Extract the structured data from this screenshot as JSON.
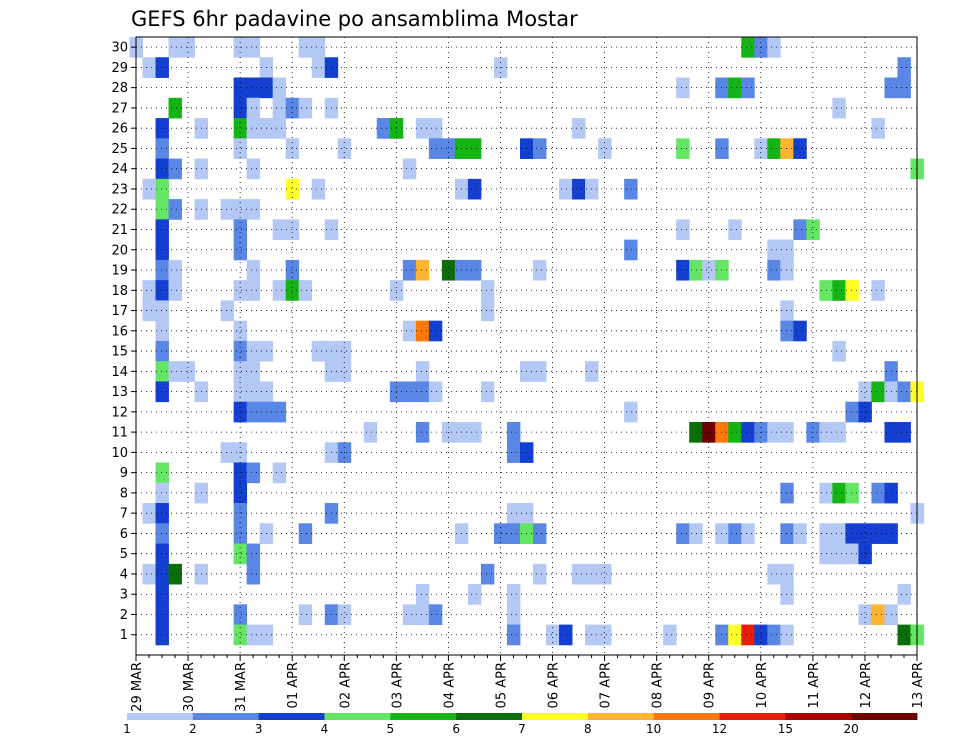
{
  "chart_data": {
    "type": "heatmap",
    "title": "GEFS 6hr padavine po ansamblima Mostar",
    "y_categories": [
      "1",
      "2",
      "3",
      "4",
      "5",
      "6",
      "7",
      "8",
      "9",
      "10",
      "11",
      "12",
      "13",
      "14",
      "15",
      "16",
      "17",
      "18",
      "19",
      "20",
      "21",
      "22",
      "23",
      "24",
      "25",
      "26",
      "27",
      "28",
      "29",
      "30"
    ],
    "x_tick_labels": [
      "29 MAR",
      "30 MAR",
      "31 MAR",
      "01 APR",
      "02 APR",
      "03 APR",
      "04 APR",
      "05 APR",
      "06 APR",
      "07 APR",
      "08 APR",
      "09 APR",
      "10 APR",
      "11 APR",
      "12 APR",
      "13 APR"
    ],
    "steps_per_day": 4,
    "total_steps": 60,
    "grid": true,
    "colorbar": {
      "levels": [
        "1",
        "2",
        "3",
        "4",
        "5",
        "6",
        "7",
        "8",
        "10",
        "12",
        "15",
        "20",
        ""
      ],
      "colors": [
        "#b4c8f5",
        "#5a87e6",
        "#1440d2",
        "#64e664",
        "#14b414",
        "#0a6e0a",
        "#ffff28",
        "#ffb432",
        "#ff780a",
        "#e61e0a",
        "#aa0000",
        "#6e0000"
      ]
    },
    "cells": [
      [
        30,
        0,
        0
      ],
      [
        30,
        3,
        0
      ],
      [
        30,
        4,
        0
      ],
      [
        30,
        8,
        0
      ],
      [
        30,
        9,
        0
      ],
      [
        30,
        13,
        0
      ],
      [
        30,
        14,
        0
      ],
      [
        30,
        47,
        4
      ],
      [
        30,
        48,
        1
      ],
      [
        30,
        49,
        0
      ],
      [
        29,
        1,
        0
      ],
      [
        29,
        2,
        2
      ],
      [
        29,
        10,
        0
      ],
      [
        29,
        14,
        0
      ],
      [
        29,
        15,
        2
      ],
      [
        29,
        28,
        0
      ],
      [
        29,
        59,
        1
      ],
      [
        28,
        8,
        2
      ],
      [
        28,
        9,
        2
      ],
      [
        28,
        10,
        2
      ],
      [
        28,
        11,
        0
      ],
      [
        28,
        42,
        0
      ],
      [
        28,
        45,
        1
      ],
      [
        28,
        46,
        4
      ],
      [
        28,
        47,
        1
      ],
      [
        28,
        58,
        1
      ],
      [
        28,
        59,
        1
      ],
      [
        27,
        3,
        4
      ],
      [
        27,
        8,
        2
      ],
      [
        27,
        9,
        0
      ],
      [
        27,
        11,
        0
      ],
      [
        27,
        12,
        1
      ],
      [
        27,
        13,
        0
      ],
      [
        27,
        15,
        0
      ],
      [
        27,
        54,
        0
      ],
      [
        26,
        2,
        2
      ],
      [
        26,
        5,
        0
      ],
      [
        26,
        8,
        4
      ],
      [
        26,
        9,
        0
      ],
      [
        26,
        10,
        0
      ],
      [
        26,
        11,
        0
      ],
      [
        26,
        19,
        1
      ],
      [
        26,
        20,
        4
      ],
      [
        26,
        22,
        0
      ],
      [
        26,
        23,
        0
      ],
      [
        26,
        34,
        0
      ],
      [
        26,
        57,
        0
      ],
      [
        25,
        2,
        1
      ],
      [
        25,
        8,
        0
      ],
      [
        25,
        12,
        0
      ],
      [
        25,
        16,
        0
      ],
      [
        25,
        23,
        1
      ],
      [
        25,
        24,
        1
      ],
      [
        25,
        25,
        4
      ],
      [
        25,
        26,
        4
      ],
      [
        25,
        30,
        2
      ],
      [
        25,
        31,
        1
      ],
      [
        25,
        36,
        0
      ],
      [
        25,
        42,
        3
      ],
      [
        25,
        45,
        1
      ],
      [
        25,
        48,
        0
      ],
      [
        25,
        49,
        4
      ],
      [
        25,
        50,
        7
      ],
      [
        25,
        51,
        2
      ],
      [
        24,
        2,
        2
      ],
      [
        24,
        3,
        1
      ],
      [
        24,
        5,
        0
      ],
      [
        24,
        9,
        0
      ],
      [
        24,
        21,
        0
      ],
      [
        24,
        60,
        3
      ],
      [
        23,
        1,
        0
      ],
      [
        23,
        2,
        3
      ],
      [
        23,
        12,
        6
      ],
      [
        23,
        14,
        0
      ],
      [
        23,
        25,
        0
      ],
      [
        23,
        26,
        2
      ],
      [
        23,
        33,
        0
      ],
      [
        23,
        34,
        2
      ],
      [
        23,
        35,
        0
      ],
      [
        23,
        38,
        1
      ],
      [
        22,
        2,
        3
      ],
      [
        22,
        3,
        1
      ],
      [
        22,
        5,
        0
      ],
      [
        22,
        7,
        0
      ],
      [
        22,
        8,
        0
      ],
      [
        22,
        9,
        0
      ],
      [
        21,
        2,
        2
      ],
      [
        21,
        8,
        1
      ],
      [
        21,
        11,
        0
      ],
      [
        21,
        12,
        0
      ],
      [
        21,
        15,
        0
      ],
      [
        21,
        42,
        0
      ],
      [
        21,
        46,
        0
      ],
      [
        21,
        51,
        1
      ],
      [
        21,
        52,
        3
      ],
      [
        20,
        2,
        2
      ],
      [
        20,
        8,
        1
      ],
      [
        20,
        38,
        1
      ],
      [
        20,
        49,
        0
      ],
      [
        20,
        50,
        0
      ],
      [
        19,
        2,
        1
      ],
      [
        19,
        3,
        0
      ],
      [
        19,
        9,
        0
      ],
      [
        19,
        12,
        1
      ],
      [
        19,
        21,
        1
      ],
      [
        19,
        22,
        7
      ],
      [
        19,
        24,
        5
      ],
      [
        19,
        25,
        1
      ],
      [
        19,
        26,
        1
      ],
      [
        19,
        31,
        0
      ],
      [
        19,
        42,
        2
      ],
      [
        19,
        43,
        3
      ],
      [
        19,
        44,
        0
      ],
      [
        19,
        45,
        3
      ],
      [
        19,
        49,
        1
      ],
      [
        19,
        50,
        0
      ],
      [
        18,
        1,
        0
      ],
      [
        18,
        2,
        2
      ],
      [
        18,
        3,
        0
      ],
      [
        18,
        8,
        0
      ],
      [
        18,
        9,
        0
      ],
      [
        18,
        11,
        0
      ],
      [
        18,
        12,
        4
      ],
      [
        18,
        13,
        0
      ],
      [
        18,
        20,
        0
      ],
      [
        18,
        27,
        0
      ],
      [
        18,
        53,
        3
      ],
      [
        18,
        54,
        4
      ],
      [
        18,
        55,
        6
      ],
      [
        18,
        57,
        0
      ],
      [
        17,
        1,
        0
      ],
      [
        17,
        2,
        0
      ],
      [
        17,
        7,
        0
      ],
      [
        17,
        27,
        0
      ],
      [
        17,
        50,
        0
      ],
      [
        16,
        2,
        0
      ],
      [
        16,
        8,
        0
      ],
      [
        16,
        21,
        0
      ],
      [
        16,
        22,
        8
      ],
      [
        16,
        23,
        2
      ],
      [
        16,
        50,
        1
      ],
      [
        16,
        51,
        2
      ],
      [
        15,
        2,
        1
      ],
      [
        15,
        8,
        1
      ],
      [
        15,
        9,
        0
      ],
      [
        15,
        10,
        0
      ],
      [
        15,
        14,
        0
      ],
      [
        15,
        15,
        0
      ],
      [
        15,
        16,
        0
      ],
      [
        15,
        54,
        0
      ],
      [
        14,
        2,
        3
      ],
      [
        14,
        3,
        0
      ],
      [
        14,
        4,
        0
      ],
      [
        14,
        8,
        0
      ],
      [
        14,
        9,
        0
      ],
      [
        14,
        15,
        0
      ],
      [
        14,
        16,
        0
      ],
      [
        14,
        22,
        0
      ],
      [
        14,
        30,
        0
      ],
      [
        14,
        31,
        0
      ],
      [
        14,
        35,
        0
      ],
      [
        14,
        58,
        1
      ],
      [
        13,
        2,
        2
      ],
      [
        13,
        5,
        0
      ],
      [
        13,
        8,
        0
      ],
      [
        13,
        9,
        0
      ],
      [
        13,
        10,
        0
      ],
      [
        13,
        20,
        1
      ],
      [
        13,
        21,
        1
      ],
      [
        13,
        22,
        1
      ],
      [
        13,
        23,
        0
      ],
      [
        13,
        27,
        0
      ],
      [
        13,
        56,
        0
      ],
      [
        13,
        57,
        4
      ],
      [
        13,
        58,
        0
      ],
      [
        13,
        59,
        1
      ],
      [
        13,
        60,
        6
      ],
      [
        12,
        8,
        2
      ],
      [
        12,
        9,
        1
      ],
      [
        12,
        10,
        1
      ],
      [
        12,
        11,
        1
      ],
      [
        12,
        38,
        0
      ],
      [
        12,
        55,
        1
      ],
      [
        12,
        56,
        2
      ],
      [
        11,
        18,
        0
      ],
      [
        11,
        22,
        1
      ],
      [
        11,
        24,
        0
      ],
      [
        11,
        25,
        0
      ],
      [
        11,
        26,
        0
      ],
      [
        11,
        29,
        1
      ],
      [
        11,
        43,
        5
      ],
      [
        11,
        44,
        11
      ],
      [
        11,
        45,
        8
      ],
      [
        11,
        46,
        4
      ],
      [
        11,
        47,
        2
      ],
      [
        11,
        48,
        1
      ],
      [
        11,
        49,
        0
      ],
      [
        11,
        50,
        0
      ],
      [
        11,
        52,
        1
      ],
      [
        11,
        53,
        0
      ],
      [
        11,
        54,
        0
      ],
      [
        11,
        58,
        2
      ],
      [
        11,
        59,
        2
      ],
      [
        10,
        7,
        0
      ],
      [
        10,
        8,
        0
      ],
      [
        10,
        15,
        0
      ],
      [
        10,
        16,
        1
      ],
      [
        10,
        29,
        1
      ],
      [
        10,
        30,
        2
      ],
      [
        9,
        2,
        3
      ],
      [
        9,
        8,
        2
      ],
      [
        9,
        9,
        1
      ],
      [
        9,
        11,
        0
      ],
      [
        8,
        2,
        0
      ],
      [
        8,
        5,
        0
      ],
      [
        8,
        8,
        2
      ],
      [
        8,
        50,
        1
      ],
      [
        8,
        53,
        0
      ],
      [
        8,
        54,
        4
      ],
      [
        8,
        55,
        3
      ],
      [
        8,
        57,
        1
      ],
      [
        8,
        58,
        2
      ],
      [
        7,
        1,
        0
      ],
      [
        7,
        2,
        2
      ],
      [
        7,
        8,
        1
      ],
      [
        7,
        15,
        1
      ],
      [
        7,
        29,
        0
      ],
      [
        7,
        30,
        0
      ],
      [
        7,
        60,
        0
      ],
      [
        6,
        2,
        1
      ],
      [
        6,
        8,
        1
      ],
      [
        6,
        10,
        0
      ],
      [
        6,
        13,
        1
      ],
      [
        6,
        25,
        0
      ],
      [
        6,
        28,
        1
      ],
      [
        6,
        29,
        1
      ],
      [
        6,
        30,
        3
      ],
      [
        6,
        31,
        1
      ],
      [
        6,
        42,
        1
      ],
      [
        6,
        43,
        0
      ],
      [
        6,
        45,
        0
      ],
      [
        6,
        46,
        1
      ],
      [
        6,
        47,
        0
      ],
      [
        6,
        50,
        1
      ],
      [
        6,
        51,
        0
      ],
      [
        6,
        53,
        0
      ],
      [
        6,
        54,
        0
      ],
      [
        6,
        55,
        2
      ],
      [
        6,
        56,
        2
      ],
      [
        6,
        57,
        2
      ],
      [
        6,
        58,
        2
      ],
      [
        5,
        2,
        2
      ],
      [
        5,
        8,
        3
      ],
      [
        5,
        9,
        1
      ],
      [
        5,
        53,
        0
      ],
      [
        5,
        54,
        0
      ],
      [
        5,
        55,
        0
      ],
      [
        5,
        56,
        2
      ],
      [
        4,
        1,
        0
      ],
      [
        4,
        2,
        2
      ],
      [
        4,
        3,
        5
      ],
      [
        4,
        5,
        0
      ],
      [
        4,
        9,
        1
      ],
      [
        4,
        27,
        1
      ],
      [
        4,
        31,
        0
      ],
      [
        4,
        34,
        0
      ],
      [
        4,
        35,
        0
      ],
      [
        4,
        36,
        0
      ],
      [
        4,
        49,
        0
      ],
      [
        4,
        50,
        0
      ],
      [
        3,
        2,
        2
      ],
      [
        3,
        22,
        0
      ],
      [
        3,
        26,
        0
      ],
      [
        3,
        29,
        0
      ],
      [
        3,
        50,
        0
      ],
      [
        3,
        59,
        0
      ],
      [
        2,
        2,
        2
      ],
      [
        2,
        8,
        1
      ],
      [
        2,
        13,
        0
      ],
      [
        2,
        15,
        1
      ],
      [
        2,
        16,
        0
      ],
      [
        2,
        21,
        0
      ],
      [
        2,
        22,
        0
      ],
      [
        2,
        23,
        1
      ],
      [
        2,
        29,
        0
      ],
      [
        2,
        56,
        0
      ],
      [
        2,
        57,
        7
      ],
      [
        2,
        58,
        0
      ],
      [
        1,
        2,
        2
      ],
      [
        1,
        8,
        3
      ],
      [
        1,
        9,
        0
      ],
      [
        1,
        10,
        0
      ],
      [
        1,
        29,
        1
      ],
      [
        1,
        32,
        0
      ],
      [
        1,
        33,
        2
      ],
      [
        1,
        35,
        0
      ],
      [
        1,
        36,
        0
      ],
      [
        1,
        41,
        0
      ],
      [
        1,
        45,
        1
      ],
      [
        1,
        46,
        6
      ],
      [
        1,
        47,
        9
      ],
      [
        1,
        48,
        2
      ],
      [
        1,
        49,
        1
      ],
      [
        1,
        50,
        0
      ],
      [
        1,
        59,
        5
      ],
      [
        1,
        60,
        3
      ]
    ]
  }
}
